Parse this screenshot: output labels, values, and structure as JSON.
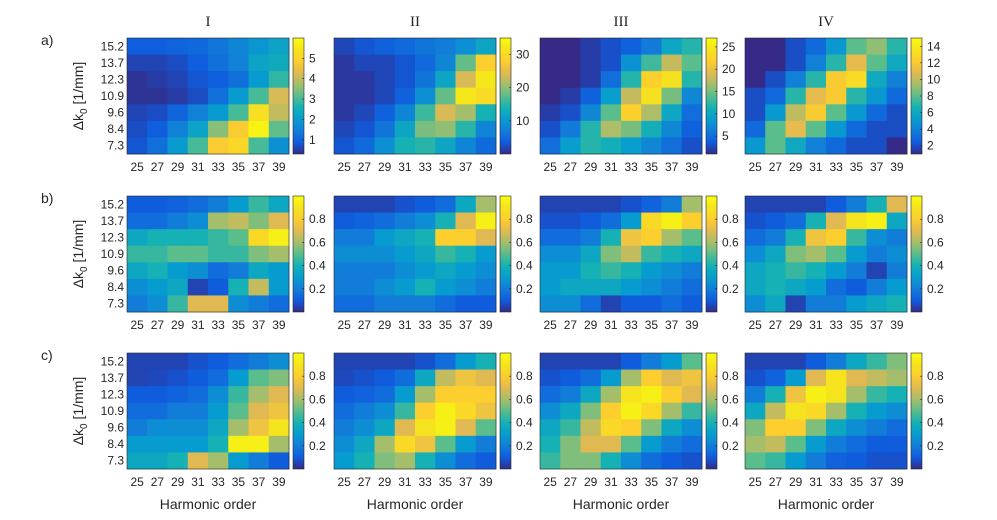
{
  "chart_data": {
    "type": "heatmap",
    "columns": [
      "I",
      "II",
      "III",
      "IV"
    ],
    "rows": [
      "a)",
      "b)",
      "c)"
    ],
    "xlabel": "Harmonic order",
    "ylabel_main": "Δk",
    "ylabel_sub": "0",
    "ylabel_unit": " [1/mm]",
    "x_ticks": [
      "25",
      "27",
      "29",
      "31",
      "33",
      "35",
      "37",
      "39"
    ],
    "y_ticks": [
      "15.2",
      "13.7",
      "12.3",
      "10.9",
      "9.6",
      "8.4",
      "7.3"
    ],
    "colormap": "parula",
    "panels": [
      [
        {
          "clim": [
            0.3,
            6.0
          ],
          "cbar_ticks": [
            "1",
            "2",
            "3",
            "4",
            "5"
          ],
          "cbar_values": [
            1,
            2,
            3,
            4,
            5
          ],
          "values": [
            [
              0.9,
              0.9,
              1.0,
              1.1,
              1.3,
              1.6,
              1.9,
              2.2
            ],
            [
              0.6,
              0.6,
              0.7,
              0.9,
              1.2,
              1.5,
              2.2,
              2.4
            ],
            [
              0.4,
              0.5,
              0.6,
              0.8,
              0.9,
              1.2,
              2.0,
              2.8
            ],
            [
              0.4,
              0.4,
              0.5,
              0.7,
              1.2,
              2.0,
              3.0,
              4.2
            ],
            [
              0.6,
              0.7,
              1.0,
              1.5,
              2.0,
              3.0,
              5.3,
              4.0
            ],
            [
              0.7,
              0.9,
              1.5,
              2.2,
              3.5,
              4.8,
              5.8,
              3.2
            ],
            [
              0.8,
              1.2,
              2.0,
              3.0,
              4.8,
              5.1,
              3.0,
              1.8
            ]
          ]
        },
        {
          "clim": [
            0,
            35
          ],
          "cbar_ticks": [
            "10",
            "20",
            "30"
          ],
          "cbar_values": [
            10,
            20,
            30
          ],
          "values": [
            [
              2,
              3,
              4,
              5,
              6,
              7,
              9,
              12
            ],
            [
              1,
              2,
              2,
              3,
              5,
              8,
              18,
              28
            ],
            [
              1,
              1,
              2,
              3,
              6,
              12,
              24,
              32
            ],
            [
              1,
              1,
              2,
              4,
              9,
              18,
              32,
              30
            ],
            [
              1,
              2,
              4,
              8,
              16,
              24,
              21,
              14
            ],
            [
              2,
              3,
              6,
              12,
              19,
              20,
              15,
              8
            ],
            [
              3,
              5,
              9,
              14,
              15,
              12,
              8,
              5
            ]
          ]
        },
        {
          "clim": [
            1,
            27
          ],
          "cbar_ticks": [
            "5",
            "10",
            "15",
            "20",
            "25"
          ],
          "cbar_values": [
            5,
            10,
            15,
            20,
            25
          ],
          "values": [
            [
              1,
              1,
              2,
              3,
              4,
              6,
              10,
              12
            ],
            [
              1,
              1,
              2,
              3,
              8,
              13,
              18,
              14
            ],
            [
              1,
              1,
              2,
              5,
              12,
              22,
              24,
              12
            ],
            [
              1,
              2,
              4,
              9,
              18,
              24,
              15,
              7
            ],
            [
              2,
              3,
              7,
              14,
              22,
              17,
              10,
              5
            ],
            [
              3,
              6,
              12,
              17,
              15,
              11,
              7,
              4
            ],
            [
              5,
              9,
              12,
              11,
              9,
              7,
              5,
              3
            ]
          ]
        },
        {
          "clim": [
            1,
            15
          ],
          "cbar_ticks": [
            "2",
            "4",
            "6",
            "8",
            "10",
            "12",
            "14"
          ],
          "cbar_values": [
            2,
            4,
            6,
            8,
            10,
            12,
            14
          ],
          "values": [
            [
              1,
              1,
              2,
              3,
              5,
              8,
              9,
              7
            ],
            [
              1,
              1,
              2,
              4,
              7,
              11,
              8,
              6
            ],
            [
              1,
              2,
              4,
              7,
              12,
              13,
              6,
              4
            ],
            [
              2,
              3,
              7,
              11,
              12,
              7,
              5,
              3
            ],
            [
              2,
              5,
              10,
              12,
              8,
              5,
              3,
              2
            ],
            [
              3,
              8,
              11,
              8,
              5,
              3,
              2,
              2
            ],
            [
              5,
              8,
              6,
              4,
              3,
              2,
              2,
              1
            ]
          ]
        }
      ],
      [
        {
          "clim": [
            0,
            1
          ],
          "cbar_ticks": [
            "0.2",
            "0.4",
            "0.6",
            "0.8"
          ],
          "cbar_values": [
            0.2,
            0.4,
            0.6,
            0.8
          ],
          "values": [
            [
              0.1,
              0.1,
              0.12,
              0.15,
              0.2,
              0.3,
              0.45,
              0.35
            ],
            [
              0.15,
              0.15,
              0.2,
              0.25,
              0.6,
              0.65,
              0.55,
              0.7
            ],
            [
              0.35,
              0.4,
              0.4,
              0.4,
              0.45,
              0.5,
              0.85,
              0.95
            ],
            [
              0.45,
              0.45,
              0.5,
              0.5,
              0.45,
              0.45,
              0.55,
              0.6
            ],
            [
              0.35,
              0.4,
              0.3,
              0.25,
              0.15,
              0.2,
              0.35,
              0.3
            ],
            [
              0.25,
              0.3,
              0.35,
              0.05,
              0.1,
              0.4,
              0.65,
              0.3
            ],
            [
              0.2,
              0.25,
              0.45,
              0.7,
              0.7,
              0.25,
              0.2,
              0.15
            ]
          ]
        },
        {
          "clim": [
            0,
            1
          ],
          "cbar_ticks": [
            "0.2",
            "0.4",
            "0.6",
            "0.8"
          ],
          "cbar_values": [
            0.2,
            0.4,
            0.6,
            0.8
          ],
          "values": [
            [
              0.05,
              0.05,
              0.05,
              0.08,
              0.1,
              0.15,
              0.35,
              0.6
            ],
            [
              0.1,
              0.12,
              0.15,
              0.2,
              0.25,
              0.4,
              0.7,
              0.95
            ],
            [
              0.2,
              0.2,
              0.3,
              0.35,
              0.4,
              0.8,
              0.8,
              0.7
            ],
            [
              0.25,
              0.25,
              0.25,
              0.3,
              0.35,
              0.45,
              0.4,
              0.3
            ],
            [
              0.2,
              0.2,
              0.2,
              0.25,
              0.3,
              0.35,
              0.3,
              0.25
            ],
            [
              0.2,
              0.2,
              0.25,
              0.3,
              0.4,
              0.3,
              0.25,
              0.2
            ],
            [
              0.15,
              0.15,
              0.2,
              0.2,
              0.2,
              0.15,
              0.1,
              0.1
            ]
          ]
        },
        {
          "clim": [
            0,
            1
          ],
          "cbar_ticks": [
            "0.2",
            "0.4",
            "0.6",
            "0.8"
          ],
          "cbar_values": [
            0.2,
            0.4,
            0.6,
            0.8
          ],
          "values": [
            [
              0.05,
              0.05,
              0.05,
              0.05,
              0.08,
              0.12,
              0.2,
              0.6
            ],
            [
              0.08,
              0.08,
              0.1,
              0.15,
              0.3,
              0.85,
              0.95,
              0.8
            ],
            [
              0.15,
              0.15,
              0.2,
              0.4,
              0.75,
              0.8,
              0.6,
              0.5
            ],
            [
              0.25,
              0.25,
              0.35,
              0.55,
              0.65,
              0.45,
              0.4,
              0.35
            ],
            [
              0.3,
              0.3,
              0.4,
              0.45,
              0.4,
              0.3,
              0.25,
              0.2
            ],
            [
              0.3,
              0.35,
              0.35,
              0.35,
              0.3,
              0.25,
              0.2,
              0.15
            ],
            [
              0.25,
              0.25,
              0.15,
              0.05,
              0.1,
              0.1,
              0.15,
              0.1
            ]
          ]
        },
        {
          "clim": [
            0,
            1
          ],
          "cbar_ticks": [
            "0.2",
            "0.4",
            "0.6",
            "0.8"
          ],
          "cbar_values": [
            0.2,
            0.4,
            0.6,
            0.8
          ],
          "values": [
            [
              0.05,
              0.05,
              0.05,
              0.05,
              0.1,
              0.2,
              0.4,
              0.7
            ],
            [
              0.08,
              0.1,
              0.15,
              0.4,
              0.7,
              0.9,
              0.95,
              0.35
            ],
            [
              0.15,
              0.2,
              0.4,
              0.75,
              0.8,
              0.45,
              0.25,
              0.2
            ],
            [
              0.25,
              0.35,
              0.55,
              0.6,
              0.5,
              0.3,
              0.2,
              0.25
            ],
            [
              0.35,
              0.4,
              0.45,
              0.4,
              0.3,
              0.2,
              0.05,
              0.2
            ],
            [
              0.35,
              0.4,
              0.35,
              0.3,
              0.15,
              0.1,
              0.2,
              0.3
            ],
            [
              0.25,
              0.35,
              0.05,
              0.2,
              0.2,
              0.3,
              0.35,
              0.4
            ]
          ]
        }
      ],
      [
        {
          "clim": [
            0,
            1
          ],
          "cbar_ticks": [
            "0.2",
            "0.4",
            "0.6",
            "0.8"
          ],
          "cbar_values": [
            0.2,
            0.4,
            0.6,
            0.8
          ],
          "values": [
            [
              0.05,
              0.05,
              0.05,
              0.08,
              0.1,
              0.15,
              0.2,
              0.25
            ],
            [
              0.05,
              0.06,
              0.08,
              0.1,
              0.15,
              0.3,
              0.5,
              0.55
            ],
            [
              0.1,
              0.1,
              0.12,
              0.15,
              0.25,
              0.45,
              0.6,
              0.7
            ],
            [
              0.15,
              0.15,
              0.2,
              0.2,
              0.3,
              0.5,
              0.7,
              0.75
            ],
            [
              0.2,
              0.25,
              0.25,
              0.25,
              0.35,
              0.6,
              0.75,
              0.9
            ],
            [
              0.3,
              0.3,
              0.3,
              0.3,
              0.4,
              0.95,
              0.95,
              0.6
            ],
            [
              0.35,
              0.35,
              0.4,
              0.7,
              0.6,
              0.3,
              0.2,
              0.1
            ]
          ]
        },
        {
          "clim": [
            0,
            1
          ],
          "cbar_ticks": [
            "0.2",
            "0.4",
            "0.6",
            "0.8"
          ],
          "cbar_values": [
            0.2,
            0.4,
            0.6,
            0.8
          ],
          "values": [
            [
              0.05,
              0.05,
              0.05,
              0.05,
              0.08,
              0.15,
              0.3,
              0.4
            ],
            [
              0.06,
              0.08,
              0.1,
              0.15,
              0.35,
              0.65,
              0.75,
              0.7
            ],
            [
              0.1,
              0.12,
              0.15,
              0.3,
              0.6,
              0.8,
              0.8,
              0.8
            ],
            [
              0.15,
              0.2,
              0.25,
              0.45,
              0.8,
              0.95,
              0.85,
              0.75
            ],
            [
              0.2,
              0.25,
              0.35,
              0.7,
              0.9,
              0.95,
              0.7,
              0.5
            ],
            [
              0.25,
              0.35,
              0.6,
              0.85,
              0.75,
              0.5,
              0.3,
              0.2
            ],
            [
              0.3,
              0.4,
              0.55,
              0.6,
              0.4,
              0.25,
              0.15,
              0.1
            ]
          ]
        },
        {
          "clim": [
            0,
            1
          ],
          "cbar_ticks": [
            "0.2",
            "0.4",
            "0.6",
            "0.8"
          ],
          "cbar_values": [
            0.2,
            0.4,
            0.6,
            0.8
          ],
          "values": [
            [
              0.05,
              0.05,
              0.05,
              0.05,
              0.1,
              0.2,
              0.3,
              0.5
            ],
            [
              0.08,
              0.1,
              0.15,
              0.3,
              0.6,
              0.8,
              0.7,
              0.75
            ],
            [
              0.15,
              0.2,
              0.35,
              0.6,
              0.9,
              0.95,
              0.8,
              0.7
            ],
            [
              0.25,
              0.35,
              0.55,
              0.8,
              0.95,
              0.85,
              0.6,
              0.45
            ],
            [
              0.35,
              0.45,
              0.65,
              0.85,
              0.8,
              0.55,
              0.35,
              0.25
            ],
            [
              0.4,
              0.55,
              0.7,
              0.7,
              0.5,
              0.3,
              0.2,
              0.15
            ],
            [
              0.45,
              0.55,
              0.55,
              0.4,
              0.25,
              0.15,
              0.1,
              0.08
            ]
          ]
        },
        {
          "clim": [
            0,
            1
          ],
          "cbar_ticks": [
            "0.2",
            "0.4",
            "0.6",
            "0.8"
          ],
          "cbar_values": [
            0.2,
            0.4,
            0.6,
            0.8
          ],
          "values": [
            [
              0.05,
              0.05,
              0.05,
              0.1,
              0.2,
              0.35,
              0.45,
              0.55
            ],
            [
              0.08,
              0.12,
              0.3,
              0.7,
              0.9,
              0.7,
              0.65,
              0.6
            ],
            [
              0.2,
              0.4,
              0.75,
              0.95,
              0.9,
              0.6,
              0.45,
              0.4
            ],
            [
              0.35,
              0.65,
              0.9,
              0.85,
              0.6,
              0.4,
              0.3,
              0.25
            ],
            [
              0.55,
              0.8,
              0.8,
              0.55,
              0.35,
              0.25,
              0.2,
              0.15
            ],
            [
              0.6,
              0.65,
              0.5,
              0.3,
              0.2,
              0.15,
              0.1,
              0.1
            ],
            [
              0.5,
              0.45,
              0.3,
              0.2,
              0.12,
              0.1,
              0.08,
              0.08
            ]
          ]
        }
      ]
    ]
  }
}
